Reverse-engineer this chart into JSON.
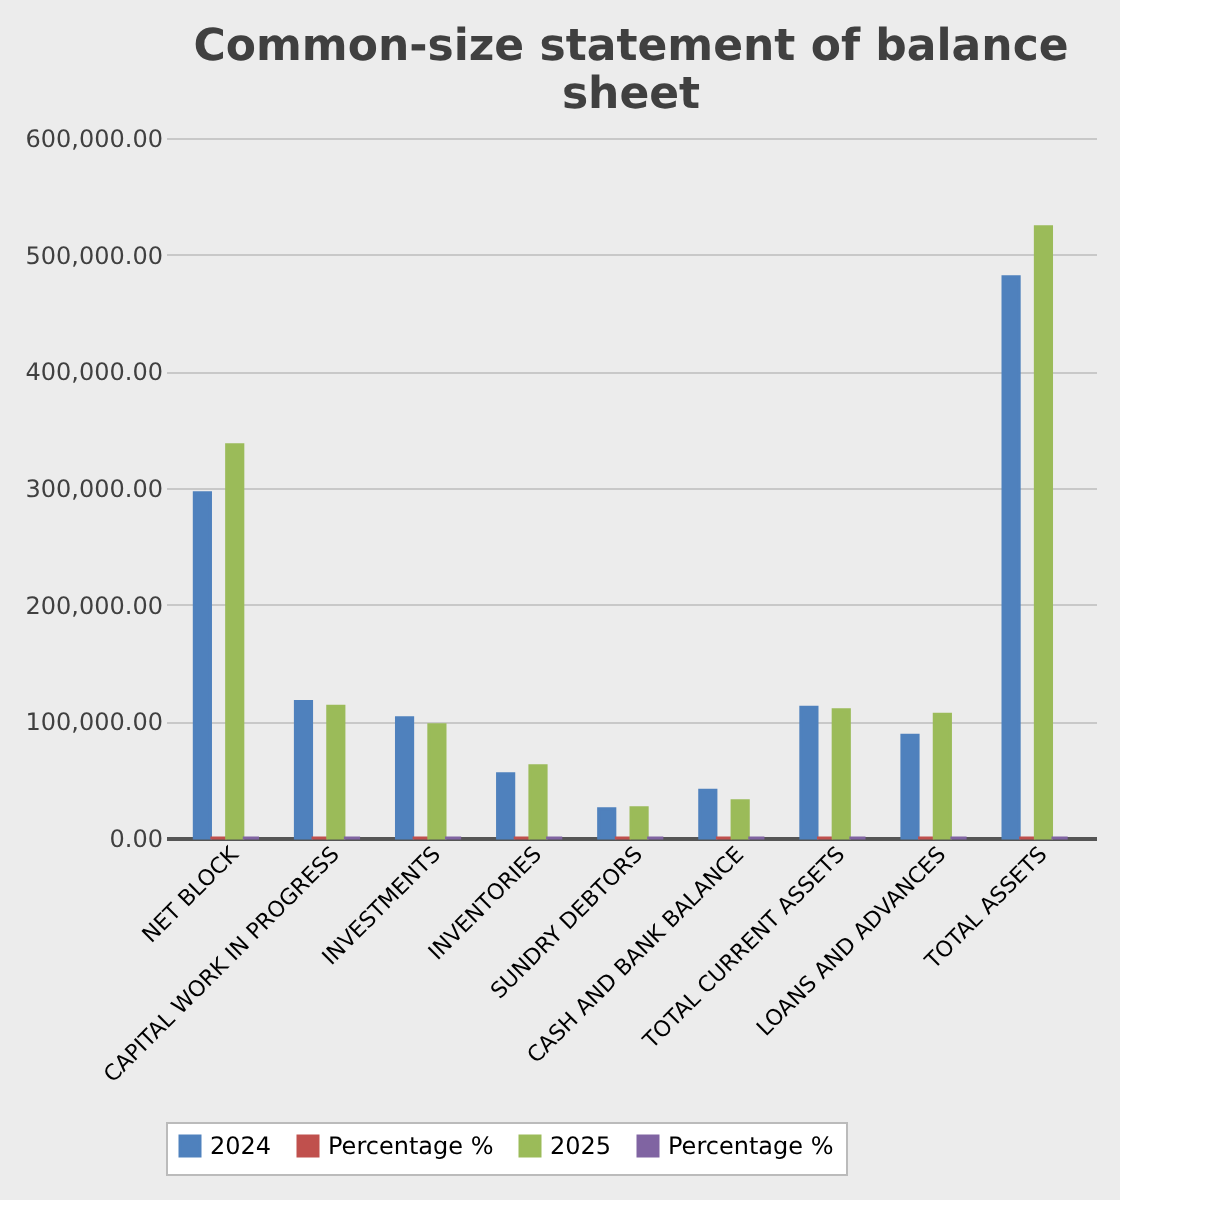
{
  "chart_data": {
    "type": "bar",
    "title": "Common-size statement of balance sheet",
    "categories": [
      "NET BLOCK",
      "CAPITAL WORK IN PROGRESS",
      "INVESTMENTS",
      "INVENTORIES",
      "SUNDRY DEBTORS",
      "CASH AND BANK BALANCE",
      "TOTAL CURRENT ASSETS",
      "LOANS AND ADVANCES",
      "TOTAL ASSETS"
    ],
    "series": [
      {
        "name": "2024",
        "color": "#4f81bd",
        "values": [
          296000,
          117000,
          103000,
          55000,
          25000,
          41000,
          112000,
          88000,
          481000
        ]
      },
      {
        "name": "Percentage %",
        "color": "#c0504d",
        "values": [
          0,
          0,
          0,
          0,
          0,
          0,
          0,
          0,
          0
        ]
      },
      {
        "name": "2025",
        "color": "#9bbb59",
        "values": [
          337000,
          113000,
          97000,
          62000,
          26000,
          32000,
          110000,
          106000,
          524000
        ]
      },
      {
        "name": "Percentage %",
        "color": "#8064a2",
        "values": [
          0,
          0,
          0,
          0,
          0,
          0,
          0,
          0,
          0
        ]
      }
    ],
    "ylim": [
      0,
      600000
    ],
    "yticks": [
      {
        "value": 0,
        "label": "0.00"
      },
      {
        "value": 100000,
        "label": "100,000.00"
      },
      {
        "value": 200000,
        "label": "200,000.00"
      },
      {
        "value": 300000,
        "label": "300,000.00"
      },
      {
        "value": 400000,
        "label": "400,000.00"
      },
      {
        "value": 500000,
        "label": "500,000.00"
      },
      {
        "value": 600000,
        "label": "600,000.00"
      }
    ],
    "grid": "y",
    "legend": "bottom"
  }
}
